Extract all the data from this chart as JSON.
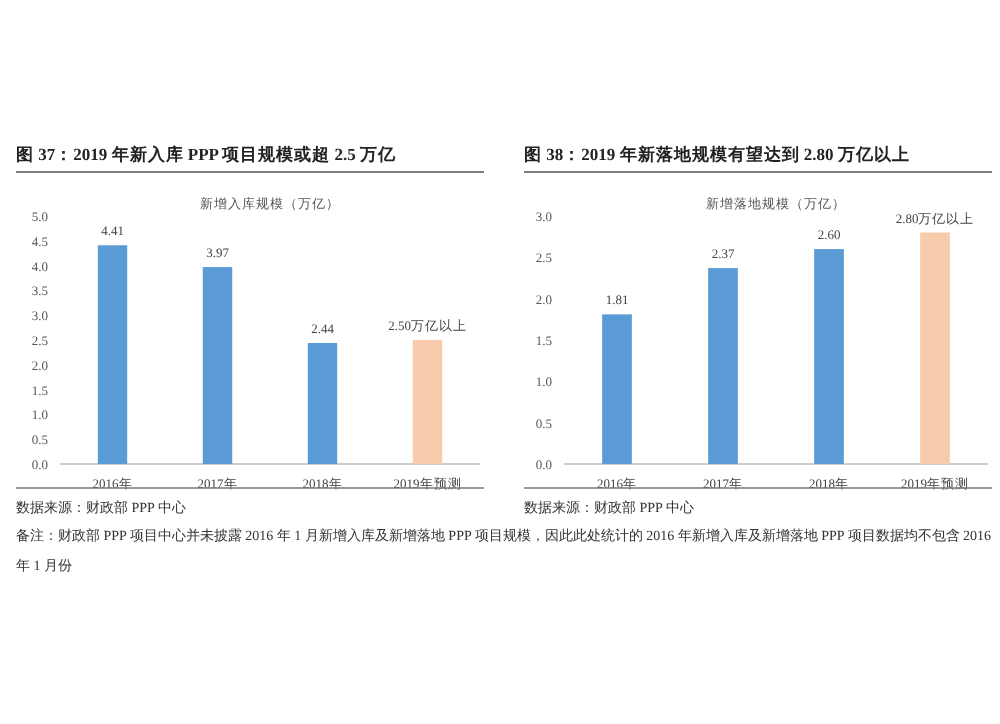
{
  "chart_data": [
    {
      "type": "bar",
      "title": "图 37：2019 年新入库 PPP 项目规模或超 2.5 万亿",
      "subtitle": "新增入库规模（万亿）",
      "categories": [
        "2016年",
        "2017年",
        "2018年",
        "2019年预测"
      ],
      "values": [
        4.41,
        3.97,
        2.44,
        2.5
      ],
      "colors": [
        "#5b9bd5",
        "#5b9bd5",
        "#5b9bd5",
        "#f8cbad"
      ],
      "value_labels": [
        "4.41",
        "3.97",
        "2.44",
        "2.50万亿以上"
      ],
      "ylim": [
        0,
        5
      ],
      "yticks": [
        {
          "value": 0,
          "label": "0.0"
        },
        {
          "value": 0.5,
          "label": "0.5"
        },
        {
          "value": 1,
          "label": "1.0"
        },
        {
          "value": 1.5,
          "label": "1.5"
        },
        {
          "value": 2,
          "label": "2.0"
        },
        {
          "value": 2.5,
          "label": "2.5"
        },
        {
          "value": 3,
          "label": "3.0"
        },
        {
          "value": 3.5,
          "label": "3.5"
        },
        {
          "value": 4,
          "label": "4.0"
        },
        {
          "value": 4.5,
          "label": "4.5"
        },
        {
          "value": 5,
          "label": "5.0"
        }
      ],
      "annotations": [
        "数据来源：财政部 PPP 中心",
        "备注：财政部 PPP 项目中心并未披露 2016 年 1 月新增入库及新增落地 PPP 项目规模，因此此处统计的 2016 年新增入库及新增落地 PPP 项目数据均不包含 2016 年 1 月份"
      ]
    },
    {
      "type": "bar",
      "title": "图 38：2019 年新落地规模有望达到 2.80 万亿以上",
      "subtitle": "新增落地规模（万亿）",
      "categories": [
        "2016年",
        "2017年",
        "2018年",
        "2019年预测"
      ],
      "values": [
        1.81,
        2.37,
        2.6,
        2.8
      ],
      "colors": [
        "#5b9bd5",
        "#5b9bd5",
        "#5b9bd5",
        "#f8cbad"
      ],
      "value_labels": [
        "1.81",
        "2.37",
        "2.60",
        "2.80万亿以上"
      ],
      "ylim": [
        0,
        3
      ],
      "yticks": [
        {
          "value": 0,
          "label": "0.0"
        },
        {
          "value": 0.5,
          "label": "0.5"
        },
        {
          "value": 1,
          "label": "1.0"
        },
        {
          "value": 1.5,
          "label": "1.5"
        },
        {
          "value": 2,
          "label": "2.0"
        },
        {
          "value": 2.5,
          "label": "2.5"
        },
        {
          "value": 3,
          "label": "3.0"
        }
      ],
      "annotations": [
        "数据来源：财政部 PPP 中心"
      ]
    }
  ]
}
